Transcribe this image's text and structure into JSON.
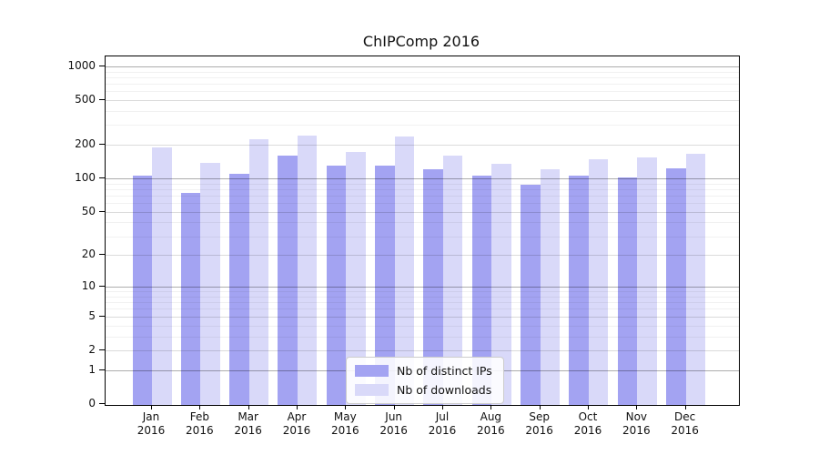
{
  "chart_data": {
    "type": "bar",
    "title": "ChIPComp 2016",
    "categories": [
      "Jan 2016",
      "Feb 2016",
      "Mar 2016",
      "Apr 2016",
      "May 2016",
      "Jun 2016",
      "Jul 2016",
      "Aug 2016",
      "Sep 2016",
      "Oct 2016",
      "Nov 2016",
      "Dec 2016"
    ],
    "series": [
      {
        "name": "Nb of distinct IPs",
        "color": "#a3a3f2",
        "values": [
          106,
          74,
          111,
          160,
          131,
          131,
          121,
          105,
          88,
          105,
          102,
          123
        ]
      },
      {
        "name": "Nb of downloads",
        "color": "#d9d9f9",
        "values": [
          190,
          138,
          226,
          240,
          174,
          237,
          160,
          135,
          121,
          148,
          153,
          166
        ]
      }
    ],
    "xlabel": "",
    "ylabel": "",
    "yscale": "log1p",
    "ylim": [
      0,
      1200
    ],
    "yticks": [
      0,
      1,
      2,
      5,
      10,
      20,
      50,
      100,
      200,
      500,
      1000
    ],
    "minor_yticks": [
      3,
      4,
      6,
      7,
      8,
      9,
      30,
      40,
      60,
      70,
      80,
      90,
      300,
      400,
      600,
      700,
      800,
      900
    ],
    "grid": "on",
    "legend_position": "lower center inside plot"
  }
}
